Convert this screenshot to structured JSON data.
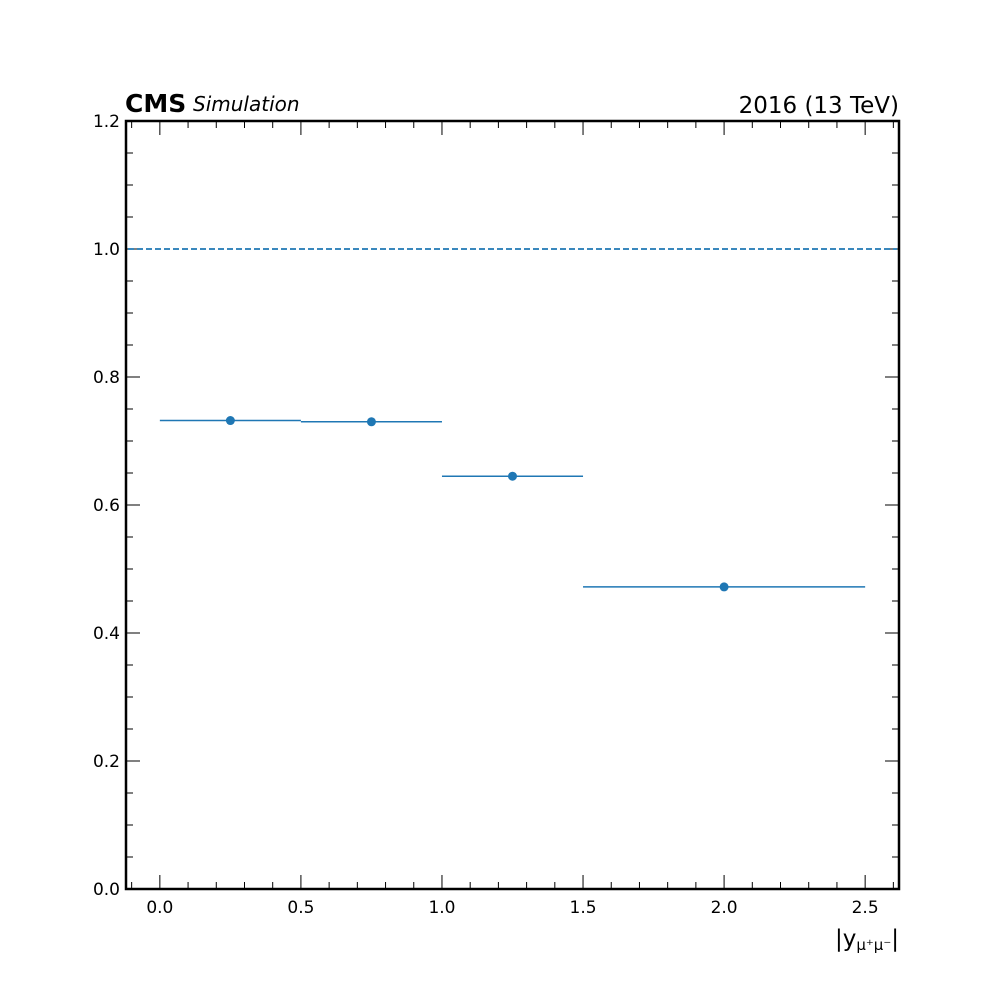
{
  "header": {
    "experiment": "CMS",
    "status": "Simulation",
    "lumi": "2016 (13 TeV)"
  },
  "chart_data": {
    "type": "scatter",
    "title": "",
    "xlabel_parts": {
      "base": "|y",
      "sub": "μ⁺μ⁻",
      "close": "|"
    },
    "ylabel": "",
    "xlim": [
      -0.12,
      2.62
    ],
    "ylim": [
      0.0,
      1.2
    ],
    "x_ticks": [
      0.0,
      0.5,
      1.0,
      1.5,
      2.0,
      2.5
    ],
    "x_tick_labels": [
      "0.0",
      "0.5",
      "1.0",
      "1.5",
      "2.0",
      "2.5"
    ],
    "y_ticks": [
      0.0,
      0.2,
      0.4,
      0.6,
      0.8,
      1.0,
      1.2
    ],
    "y_tick_labels": [
      "0.0",
      "0.2",
      "0.4",
      "0.6",
      "0.8",
      "1.0",
      "1.2"
    ],
    "grid": false,
    "series": [
      {
        "color": "#1f77b4",
        "points": [
          {
            "x": 0.25,
            "y": 0.732,
            "xlow": 0.0,
            "xhigh": 0.5
          },
          {
            "x": 0.75,
            "y": 0.73,
            "xlow": 0.5,
            "xhigh": 1.0
          },
          {
            "x": 1.25,
            "y": 0.645,
            "xlow": 1.0,
            "xhigh": 1.5
          },
          {
            "x": 2.0,
            "y": 0.472,
            "xlow": 1.5,
            "xhigh": 2.5
          }
        ]
      }
    ],
    "reference_line": {
      "y": 1.0,
      "style": "dashed",
      "color": "#1f77b4"
    }
  }
}
